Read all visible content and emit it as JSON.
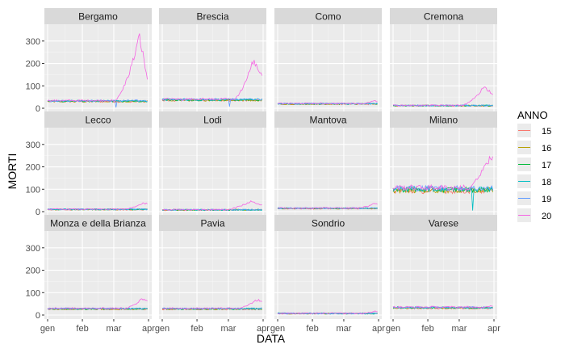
{
  "chart_data": {
    "type": "line",
    "facet_by": "provincia",
    "facets": [
      "Bergamo",
      "Brescia",
      "Como",
      "Cremona",
      "Lecco",
      "Lodi",
      "Mantova",
      "Milano",
      "Monza e della Brianza",
      "Pavia",
      "Sondrio",
      "Varese"
    ],
    "xlabel": "DATA",
    "ylabel": "MORTI",
    "x_ticks": [
      "gen",
      "feb",
      "mar",
      "apr"
    ],
    "x_tick_days": [
      1,
      32,
      60,
      91
    ],
    "x_range_days": [
      1,
      91
    ],
    "y_ticks": [
      0,
      100,
      200,
      300
    ],
    "ylim": [
      -18,
      375
    ],
    "grid": true,
    "legend": {
      "title": "ANNO",
      "position": "right",
      "entries": [
        "15",
        "16",
        "17",
        "18",
        "19",
        "20"
      ],
      "colors": [
        "#F8766D",
        "#B79F00",
        "#00BA38",
        "#00BFC4",
        "#619CFF",
        "#F564E3"
      ]
    },
    "series_note": "Daily deaths Jan 1 - Mar 31; lines for years 15-19 hover near baseline, 20 rises in March",
    "baselines": {
      "Bergamo": 32,
      "Brescia": 38,
      "Como": 20,
      "Cremona": 12,
      "Lecco": 10,
      "Lodi": 8,
      "Mantova": 15,
      "Milano": 100,
      "Monza e della Brianza": 28,
      "Pavia": 28,
      "Sondrio": 7,
      "Varese": 33
    },
    "surge_2020": {
      "Bergamo": {
        "start_day": 60,
        "peak_day": 83,
        "peak": 320,
        "end": 130
      },
      "Brescia": {
        "start_day": 64,
        "peak_day": 82,
        "peak": 210,
        "end": 150
      },
      "Como": {
        "start_day": 72,
        "peak_day": 88,
        "peak": 32,
        "end": 30
      },
      "Cremona": {
        "start_day": 62,
        "peak_day": 82,
        "peak": 95,
        "end": 65
      },
      "Lecco": {
        "start_day": 68,
        "peak_day": 86,
        "peak": 38,
        "end": 35
      },
      "Lodi": {
        "start_day": 56,
        "peak_day": 80,
        "peak": 45,
        "end": 30
      },
      "Mantova": {
        "start_day": 72,
        "peak_day": 88,
        "peak": 38,
        "end": 32
      },
      "Milano": {
        "start_day": 66,
        "peak_day": 87,
        "peak": 240,
        "end": 230
      },
      "Monza e della Brianza": {
        "start_day": 68,
        "peak_day": 85,
        "peak": 70,
        "end": 65
      },
      "Pavia": {
        "start_day": 66,
        "peak_day": 86,
        "peak": 68,
        "end": 60
      },
      "Sondrio": {
        "start_day": 76,
        "peak_day": 88,
        "peak": 18,
        "end": 16
      },
      "Varese": {
        "start_day": 74,
        "peak_day": 90,
        "peak": 42,
        "end": 40
      }
    }
  }
}
